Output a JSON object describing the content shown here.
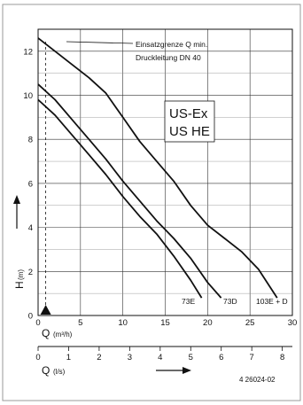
{
  "chart_data": {
    "type": "line",
    "xlabel": "Q",
    "xunit": "(m³/h)",
    "ylabel": "H",
    "yunit": "(m)",
    "xlim": [
      0,
      30
    ],
    "ylim": [
      0,
      13
    ],
    "xticks": [
      "0",
      "5",
      "10",
      "15",
      "20",
      "25",
      "30"
    ],
    "yticks": [
      "0",
      "2",
      "4",
      "6",
      "8",
      "10",
      "12"
    ],
    "secondary_xlabel": "Q",
    "secondary_xunit": "(l/s)",
    "secondary_xlim": [
      0,
      8.33
    ],
    "secondary_xticks": [
      "0",
      "1",
      "2",
      "3",
      "4",
      "5",
      "6",
      "7",
      "8"
    ],
    "title_box": [
      "US-Ex",
      "US HE"
    ],
    "annotation": [
      "Einsatzgrenze Q min.",
      "Druckleitung DN 40"
    ],
    "min_flow_q": 0.9,
    "grid": true,
    "series": [
      {
        "name": "73E",
        "x": [
          0,
          2,
          4,
          6,
          8,
          10,
          12,
          14,
          16,
          18,
          19.3
        ],
        "y": [
          9.8,
          9.1,
          8.2,
          7.3,
          6.4,
          5.4,
          4.5,
          3.7,
          2.7,
          1.6,
          0.8
        ]
      },
      {
        "name": "73D",
        "x": [
          0,
          2,
          4,
          6,
          8,
          10,
          12,
          14,
          16,
          18,
          20,
          21.6
        ],
        "y": [
          10.5,
          9.8,
          8.9,
          8.0,
          7.1,
          6.1,
          5.2,
          4.3,
          3.5,
          2.6,
          1.5,
          0.8
        ]
      },
      {
        "name": "103E + D",
        "x": [
          0,
          2,
          4,
          6,
          8,
          10,
          12,
          14,
          16,
          18,
          20,
          22,
          24,
          26,
          28.2
        ],
        "y": [
          12.6,
          12.0,
          11.4,
          10.8,
          10.1,
          9.0,
          7.9,
          7.0,
          6.1,
          5.0,
          4.1,
          3.5,
          2.9,
          2.1,
          0.8
        ]
      }
    ],
    "footer_code": "4 26024-02"
  }
}
